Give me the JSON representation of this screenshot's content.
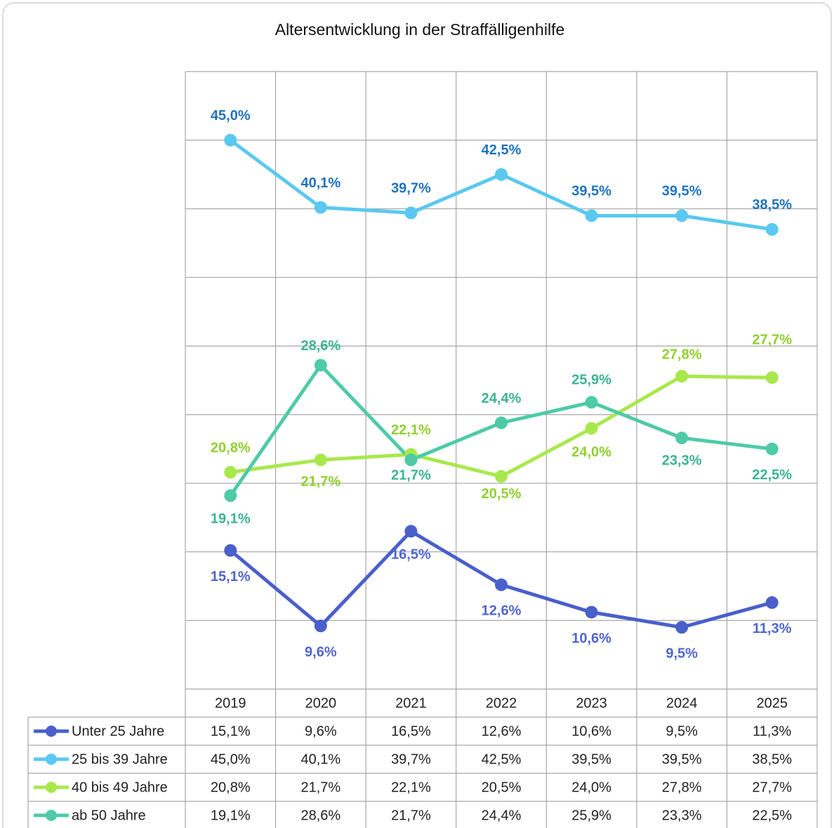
{
  "chart_data": {
    "type": "line",
    "title": "Altersentwicklung in der Straffälligenhilfe",
    "categories": [
      "2019",
      "2020",
      "2021",
      "2022",
      "2023",
      "2024",
      "2025"
    ],
    "ylim": [
      5,
      50
    ],
    "yticks": [
      5,
      10,
      15,
      20,
      25,
      30,
      35,
      40,
      45,
      50
    ],
    "grid": true,
    "legend": "table",
    "series": [
      {
        "name": "Unter 25 Jahre",
        "color": "#4a5fcb",
        "label_color": "#5065cf",
        "values": [
          15.1,
          9.6,
          16.5,
          12.6,
          10.6,
          9.5,
          11.3
        ],
        "value_labels": [
          "15,1%",
          "9,6%",
          "16,5%",
          "12,6%",
          "10,6%",
          "9,5%",
          "11,3%"
        ]
      },
      {
        "name": "25 bis 39 Jahre",
        "color": "#5ac8f0",
        "label_color": "#1f72c0",
        "values": [
          45.0,
          40.1,
          39.7,
          42.5,
          39.5,
          39.5,
          38.5
        ],
        "value_labels": [
          "45,0%",
          "40,1%",
          "39,7%",
          "42,5%",
          "39,5%",
          "39,5%",
          "38,5%"
        ]
      },
      {
        "name": "40 bis 49 Jahre",
        "color": "#a9e84c",
        "label_color": "#8fd02e",
        "values": [
          20.8,
          21.7,
          22.1,
          20.5,
          24.0,
          27.8,
          27.7
        ],
        "value_labels": [
          "20,8%",
          "21,7%",
          "22,1%",
          "20,5%",
          "24,0%",
          "27,8%",
          "27,7%"
        ]
      },
      {
        "name": "ab 50 Jahre",
        "color": "#4fcaa8",
        "label_color": "#3bb393",
        "values": [
          19.1,
          28.6,
          21.7,
          24.4,
          25.9,
          23.3,
          22.5
        ],
        "value_labels": [
          "19,1%",
          "28,6%",
          "21,7%",
          "24,4%",
          "25,9%",
          "23,3%",
          "22,5%"
        ]
      }
    ]
  }
}
